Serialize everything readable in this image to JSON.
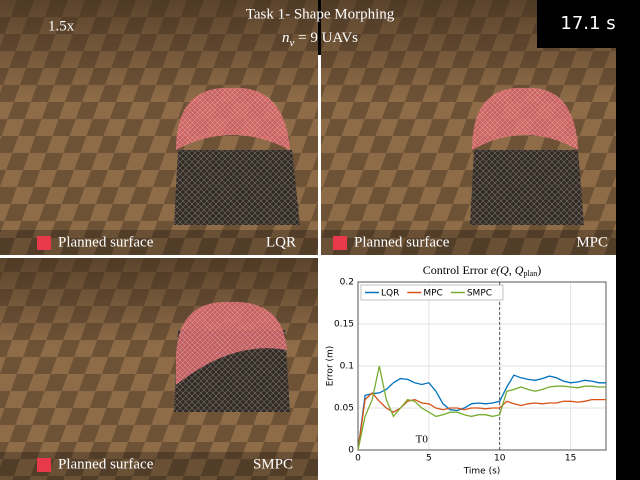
{
  "header": {
    "speed": "1.5x",
    "title": "Task 1- Shape Morphing",
    "subtitle_var": "n",
    "subtitle_sub": "v",
    "subtitle_rest": " = 9 UAVs",
    "timer": "17.1 s"
  },
  "panels": [
    {
      "legend": "Planned surface",
      "method": "LQR"
    },
    {
      "legend": "Planned surface",
      "method": "MPC"
    },
    {
      "legend": "Planned surface",
      "method": "SMPC"
    }
  ],
  "chart_data": {
    "type": "line",
    "title": "Control Error ",
    "title_math": "e(Q, Q",
    "title_sub": "plan",
    "title_end": ")",
    "x_label": "Time (s)",
    "y_label": "Error (m)",
    "annotation": "T0",
    "annotation_x": 4.5,
    "annotation_y": 0.012,
    "vline_x": 10,
    "x": [
      0,
      0.5,
      1,
      1.5,
      2,
      2.5,
      3,
      3.5,
      4,
      4.5,
      5,
      5.5,
      6,
      6.5,
      7,
      7.5,
      8,
      8.5,
      9,
      9.5,
      10,
      10.5,
      11,
      11.5,
      12,
      12.5,
      13,
      13.5,
      14,
      14.5,
      15,
      15.5,
      16,
      16.5,
      17,
      17.5
    ],
    "series": [
      {
        "name": "LQR",
        "color": "#0072bd",
        "values": [
          0,
          0.065,
          0.067,
          0.068,
          0.072,
          0.08,
          0.085,
          0.084,
          0.08,
          0.078,
          0.08,
          0.07,
          0.055,
          0.048,
          0.047,
          0.05,
          0.055,
          0.056,
          0.055,
          0.056,
          0.058,
          0.075,
          0.089,
          0.086,
          0.084,
          0.083,
          0.085,
          0.088,
          0.086,
          0.082,
          0.08,
          0.081,
          0.083,
          0.082,
          0.08,
          0.08
        ]
      },
      {
        "name": "MPC",
        "color": "#d95319",
        "values": [
          0,
          0.06,
          0.068,
          0.058,
          0.05,
          0.045,
          0.05,
          0.058,
          0.06,
          0.056,
          0.055,
          0.05,
          0.048,
          0.05,
          0.05,
          0.048,
          0.05,
          0.05,
          0.049,
          0.05,
          0.05,
          0.058,
          0.055,
          0.053,
          0.055,
          0.056,
          0.055,
          0.056,
          0.056,
          0.058,
          0.058,
          0.057,
          0.058,
          0.06,
          0.06,
          0.06
        ]
      },
      {
        "name": "SMPC",
        "color": "#77ac30",
        "values": [
          0,
          0.04,
          0.06,
          0.1,
          0.06,
          0.04,
          0.05,
          0.06,
          0.058,
          0.05,
          0.045,
          0.04,
          0.042,
          0.045,
          0.045,
          0.042,
          0.04,
          0.042,
          0.042,
          0.04,
          0.042,
          0.07,
          0.072,
          0.075,
          0.072,
          0.07,
          0.072,
          0.075,
          0.076,
          0.076,
          0.075,
          0.074,
          0.076,
          0.076,
          0.075,
          0.075
        ]
      }
    ],
    "xlim": [
      0,
      17.5
    ],
    "ylim": [
      0,
      0.2
    ],
    "xticks": [
      0,
      5,
      10,
      15
    ],
    "yticks": [
      0,
      0.05,
      0.1,
      0.15,
      0.2
    ],
    "grid": true
  }
}
